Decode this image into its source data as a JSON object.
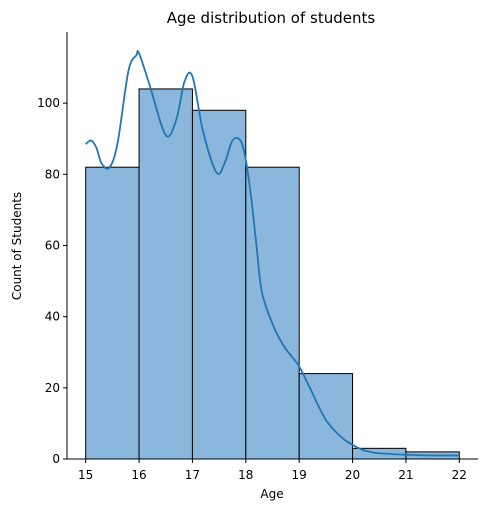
{
  "colors": {
    "bar_fill": "#8ab7db",
    "bar_edge": "#000000",
    "kde_line": "#1f77b4",
    "axis": "#000000"
  },
  "chart_data": {
    "type": "bar",
    "subtype": "histogram-with-kde",
    "title": "Age distribution of students",
    "xlabel": "Age",
    "ylabel": "Count of Students",
    "bins": [
      {
        "x0": 15,
        "x1": 16,
        "count": 82
      },
      {
        "x0": 16,
        "x1": 17,
        "count": 104
      },
      {
        "x0": 17,
        "x1": 18,
        "count": 98
      },
      {
        "x0": 18,
        "x1": 19,
        "count": 82
      },
      {
        "x0": 19,
        "x1": 20,
        "count": 24
      },
      {
        "x0": 20,
        "x1": 21,
        "count": 3
      },
      {
        "x0": 21,
        "x1": 22,
        "count": 2
      }
    ],
    "kde": {
      "x": [
        15.0,
        15.1,
        15.2,
        15.3,
        15.45,
        15.6,
        15.8,
        15.95,
        16.0,
        16.2,
        16.5,
        16.7,
        16.85,
        17.0,
        17.2,
        17.45,
        17.6,
        17.75,
        17.9,
        18.0,
        18.1,
        18.2,
        18.3,
        18.5,
        18.7,
        18.85,
        19.0,
        19.2,
        19.5,
        19.8,
        20.0,
        20.2,
        20.4,
        20.6,
        21.0,
        21.5,
        22.0
      ],
      "y": [
        88.5,
        89.5,
        87.5,
        83,
        82,
        89,
        109,
        113.5,
        114,
        105,
        91,
        95.5,
        106,
        107.5,
        92,
        80.5,
        83,
        89.5,
        89.5,
        84,
        73.5,
        60,
        47,
        38,
        32,
        29,
        26,
        20,
        11,
        6,
        4,
        2.5,
        1.8,
        1.5,
        1.2,
        1.0,
        1.0
      ]
    },
    "x_ticks": [
      15,
      16,
      17,
      18,
      19,
      20,
      21,
      22
    ],
    "y_ticks": [
      0,
      20,
      40,
      60,
      80,
      100
    ],
    "xlim": [
      14.65,
      22.35
    ],
    "ylim": [
      0,
      120
    ],
    "grid": false,
    "legend": false
  }
}
